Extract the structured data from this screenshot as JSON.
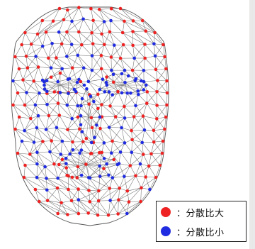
{
  "colors": {
    "large_dispersion": "#ee2222",
    "small_dispersion": "#1f2be0",
    "mesh": "#6f6f6f",
    "outline": "#555555"
  },
  "legend": {
    "items": [
      {
        "label": "：分散比大",
        "color": "#ee2222"
      },
      {
        "label": "：分散比小",
        "color": "#1f2be0"
      }
    ]
  }
}
